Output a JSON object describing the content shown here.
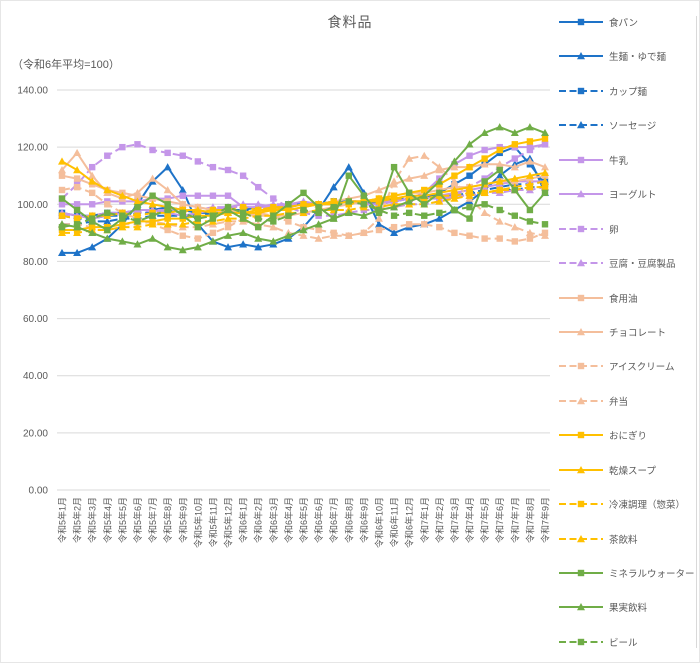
{
  "title": "食料品",
  "subtitle": "（令和6年平均=100）",
  "colors": {
    "text": "#595959",
    "grid": "#d9d9d9",
    "border": "#d9d9d9",
    "background": "#ffffff",
    "blue": "#1e73c8",
    "purple": "#c496e9",
    "peach": "#f4be9b",
    "gold": "#ffc000",
    "green": "#70ad47"
  },
  "chart_data": {
    "type": "line",
    "title": "食料品",
    "subtitle": "（令和6年平均=100）",
    "ylim": [
      0,
      140
    ],
    "ytick_step": 20,
    "ytick_decimals": 2,
    "grid": true,
    "legend_position": "right",
    "x": [
      "令和5年1月",
      "令和5年2月",
      "令和5年3月",
      "令和5年4月",
      "令和5年5月",
      "令和5年6月",
      "令和5年7月",
      "令和5年8月",
      "令和5年9月",
      "令和5年10月",
      "令和5年11月",
      "令和5年12月",
      "令和6年1月",
      "令和6年2月",
      "令和6年3月",
      "令和6年4月",
      "令和6年5月",
      "令和6年6月",
      "令和6年7月",
      "令和6年8月",
      "令和6年9月",
      "令和6年10月",
      "令和6年11月",
      "令和6年12月",
      "令和7年1月",
      "令和7年2月",
      "令和7年3月",
      "令和7年4月",
      "令和7年5月",
      "令和7年6月",
      "令和7年7月",
      "令和7年8月",
      "令和7年9月"
    ],
    "series": [
      {
        "name": "食パン",
        "color": "#1e73c8",
        "dash": false,
        "marker": "square",
        "values": [
          97,
          96,
          96,
          97,
          97,
          98,
          98,
          99,
          98,
          97,
          97,
          98,
          98,
          99,
          99,
          100,
          100,
          100,
          101,
          101,
          100,
          100,
          101,
          102,
          102,
          104,
          107,
          110,
          114,
          118,
          120,
          114,
          107
        ]
      },
      {
        "name": "生麺・ゆで麺",
        "color": "#1e73c8",
        "dash": false,
        "marker": "triangle",
        "values": [
          83,
          83,
          85,
          88,
          93,
          100,
          108,
          113,
          105,
          93,
          87,
          85,
          86,
          85,
          86,
          88,
          92,
          98,
          106,
          113,
          104,
          93,
          90,
          92,
          93,
          95,
          98,
          101,
          105,
          110,
          114,
          116,
          104
        ]
      },
      {
        "name": "カップ麺",
        "color": "#1e73c8",
        "dash": true,
        "marker": "square",
        "values": [
          96,
          95,
          95,
          96,
          96,
          97,
          97,
          98,
          98,
          97,
          97,
          98,
          98,
          99,
          99,
          100,
          100,
          100,
          101,
          101,
          100,
          101,
          101,
          102,
          102,
          103,
          103,
          104,
          105,
          106,
          107,
          107,
          108
        ]
      },
      {
        "name": "ソーセージ",
        "color": "#1e73c8",
        "dash": true,
        "marker": "triangle",
        "values": [
          93,
          93,
          94,
          94,
          95,
          95,
          96,
          96,
          96,
          96,
          97,
          97,
          98,
          98,
          99,
          99,
          100,
          100,
          100,
          101,
          101,
          101,
          102,
          102,
          102,
          103,
          103,
          104,
          104,
          105,
          105,
          106,
          106
        ]
      },
      {
        "name": "牛乳",
        "color": "#c496e9",
        "dash": false,
        "marker": "square",
        "values": [
          100,
          100,
          100,
          101,
          101,
          101,
          102,
          102,
          103,
          103,
          103,
          103,
          99,
          99,
          99,
          99,
          100,
          100,
          100,
          101,
          101,
          101,
          101,
          102,
          104,
          109,
          114,
          117,
          119,
          120,
          120,
          120,
          121
        ]
      },
      {
        "name": "ヨーグルト",
        "color": "#c496e9",
        "dash": false,
        "marker": "triangle",
        "values": [
          97,
          96,
          95,
          96,
          97,
          98,
          98,
          97,
          96,
          97,
          98,
          99,
          100,
          100,
          99,
          100,
          101,
          100,
          100,
          101,
          100,
          100,
          101,
          102,
          102,
          103,
          104,
          105,
          106,
          107,
          108,
          108,
          108
        ]
      },
      {
        "name": "卵",
        "color": "#c496e9",
        "dash": true,
        "marker": "square",
        "values": [
          102,
          107,
          113,
          117,
          120,
          121,
          119,
          118,
          117,
          115,
          113,
          112,
          110,
          106,
          102,
          99,
          97,
          96,
          96,
          97,
          98,
          98,
          99,
          100,
          100,
          101,
          103,
          106,
          109,
          113,
          116,
          119,
          121
        ]
      },
      {
        "name": "豆腐・豆腐製品",
        "color": "#c496e9",
        "dash": true,
        "marker": "triangle",
        "values": [
          96,
          96,
          96,
          97,
          97,
          97,
          98,
          98,
          98,
          98,
          99,
          99,
          99,
          99,
          100,
          100,
          100,
          100,
          100,
          101,
          101,
          101,
          101,
          102,
          102,
          102,
          103,
          103,
          104,
          104,
          105,
          105,
          106
        ]
      },
      {
        "name": "食用油",
        "color": "#f4be9b",
        "dash": false,
        "marker": "square",
        "values": [
          110,
          109,
          107,
          105,
          104,
          103,
          102,
          101,
          100,
          99,
          98,
          97,
          97,
          96,
          96,
          96,
          97,
          98,
          99,
          100,
          101,
          102,
          103,
          104,
          104,
          105,
          106,
          106,
          107,
          108,
          108,
          109,
          110
        ]
      },
      {
        "name": "チョコレート",
        "color": "#f4be9b",
        "dash": false,
        "marker": "triangle",
        "values": [
          112,
          118,
          110,
          104,
          102,
          104,
          109,
          105,
          100,
          99,
          98,
          98,
          97,
          97,
          98,
          98,
          99,
          100,
          101,
          102,
          103,
          105,
          107,
          109,
          110,
          112,
          113,
          113,
          114,
          114,
          113,
          115,
          113
        ]
      },
      {
        "name": "アイスクリーム",
        "color": "#f4be9b",
        "dash": true,
        "marker": "square",
        "values": [
          105,
          106,
          104,
          100,
          97,
          95,
          93,
          91,
          89,
          88,
          90,
          92,
          95,
          97,
          96,
          94,
          92,
          91,
          90,
          89,
          90,
          91,
          92,
          93,
          93,
          92,
          90,
          89,
          88,
          88,
          87,
          88,
          90
        ]
      },
      {
        "name": "弁当",
        "color": "#f4be9b",
        "dash": true,
        "marker": "triangle",
        "values": [
          93,
          93,
          92,
          92,
          93,
          93,
          94,
          93,
          92,
          92,
          93,
          94,
          94,
          93,
          92,
          90,
          89,
          88,
          89,
          89,
          90,
          95,
          108,
          116,
          117,
          113,
          108,
          102,
          97,
          94,
          92,
          90,
          89
        ]
      },
      {
        "name": "おにぎり",
        "color": "#ffc000",
        "dash": false,
        "marker": "square",
        "values": [
          91,
          91,
          92,
          92,
          93,
          94,
          94,
          95,
          95,
          96,
          96,
          97,
          97,
          97,
          98,
          98,
          99,
          100,
          100,
          101,
          101,
          102,
          103,
          104,
          105,
          107,
          110,
          113,
          116,
          119,
          121,
          122,
          123
        ]
      },
      {
        "name": "乾燥スープ",
        "color": "#ffc000",
        "dash": false,
        "marker": "triangle",
        "values": [
          115,
          112,
          108,
          105,
          103,
          101,
          100,
          99,
          98,
          98,
          97,
          97,
          97,
          98,
          98,
          99,
          100,
          100,
          100,
          101,
          101,
          102,
          102,
          103,
          103,
          104,
          105,
          106,
          107,
          108,
          109,
          110,
          111
        ]
      },
      {
        "name": "冷凍調理（惣菜）",
        "color": "#ffc000",
        "dash": true,
        "marker": "square",
        "values": [
          96,
          95,
          96,
          96,
          97,
          96,
          97,
          97,
          98,
          97,
          98,
          98,
          99,
          98,
          99,
          99,
          100,
          100,
          101,
          100,
          101,
          101,
          102,
          102,
          102,
          103,
          103,
          104,
          104,
          105,
          105,
          106,
          106
        ]
      },
      {
        "name": "茶飲料",
        "color": "#ffc000",
        "dash": true,
        "marker": "triangle",
        "values": [
          90,
          90,
          91,
          91,
          92,
          92,
          93,
          93,
          93,
          94,
          94,
          95,
          95,
          96,
          96,
          97,
          97,
          98,
          98,
          98,
          99,
          99,
          100,
          100,
          100,
          101,
          102,
          103,
          104,
          105,
          106,
          107,
          108
        ]
      },
      {
        "name": "ミネラルウォーター",
        "color": "#70ad47",
        "dash": false,
        "marker": "square",
        "values": [
          102,
          98,
          94,
          91,
          95,
          99,
          103,
          100,
          96,
          92,
          95,
          98,
          95,
          92,
          96,
          100,
          104,
          99,
          95,
          110,
          103,
          97,
          113,
          104,
          100,
          104,
          98,
          95,
          108,
          112,
          105,
          98,
          104
        ]
      },
      {
        "name": "果実飲料",
        "color": "#70ad47",
        "dash": false,
        "marker": "triangle",
        "values": [
          93,
          92,
          90,
          88,
          87,
          86,
          88,
          85,
          84,
          85,
          87,
          89,
          90,
          88,
          87,
          89,
          91,
          93,
          95,
          97,
          96,
          98,
          99,
          101,
          103,
          108,
          115,
          121,
          125,
          127,
          125,
          127,
          125
        ]
      },
      {
        "name": "ビール",
        "color": "#70ad47",
        "dash": true,
        "marker": "square",
        "values": [
          92,
          93,
          95,
          97,
          96,
          94,
          96,
          98,
          97,
          95,
          96,
          99,
          97,
          95,
          94,
          96,
          98,
          97,
          99,
          101,
          100,
          98,
          96,
          97,
          96,
          97,
          98,
          99,
          100,
          98,
          96,
          94,
          93
        ]
      }
    ]
  }
}
